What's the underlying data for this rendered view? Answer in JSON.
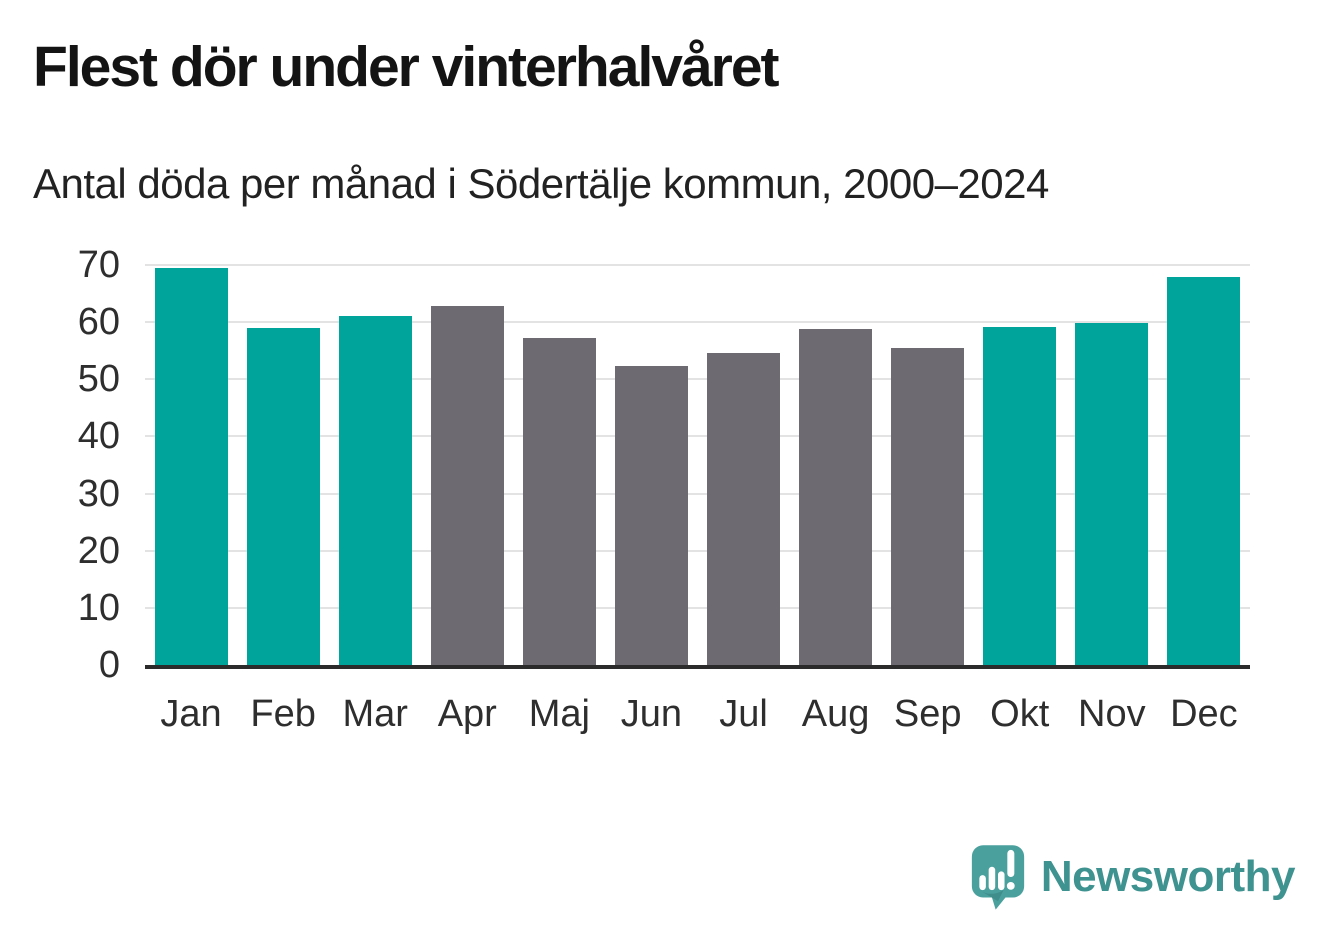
{
  "header": {
    "title": "Flest dör under vinterhalvåret",
    "subtitle": "Antal döda per månad i Södertälje kommun, 2000–2024"
  },
  "chart_data": {
    "type": "bar",
    "title": "Flest dör under vinterhalvåret",
    "subtitle": "Antal döda per månad i Södertälje kommun, 2000–2024",
    "categories": [
      "Jan",
      "Feb",
      "Mar",
      "Apr",
      "Maj",
      "Jun",
      "Jul",
      "Aug",
      "Sep",
      "Okt",
      "Nov",
      "Dec"
    ],
    "values": [
      69.4,
      59.0,
      61.0,
      62.9,
      57.2,
      52.3,
      54.6,
      58.8,
      55.5,
      59.2,
      59.8,
      67.9
    ],
    "color_keys": [
      "winter",
      "winter",
      "winter",
      "summer",
      "summer",
      "summer",
      "summer",
      "summer",
      "summer",
      "winter",
      "winter",
      "winter"
    ],
    "palette": {
      "winter": "#00A49B",
      "summer": "#6D6A72"
    },
    "xlabel": "",
    "ylabel": "",
    "ylim": [
      0,
      70
    ],
    "yticks": [
      0,
      10,
      20,
      30,
      40,
      50,
      60,
      70
    ],
    "grid": true,
    "legend_position": "none",
    "gridline_color": "#E3E3E3",
    "axis_line_color": "#2B2B2B",
    "tick_text_color": "#2E2E2E"
  },
  "footer": {
    "logo_text": "Newsworthy",
    "logo_text_color": "#3E9290",
    "logo_bubble_color": "#4AA09D"
  }
}
